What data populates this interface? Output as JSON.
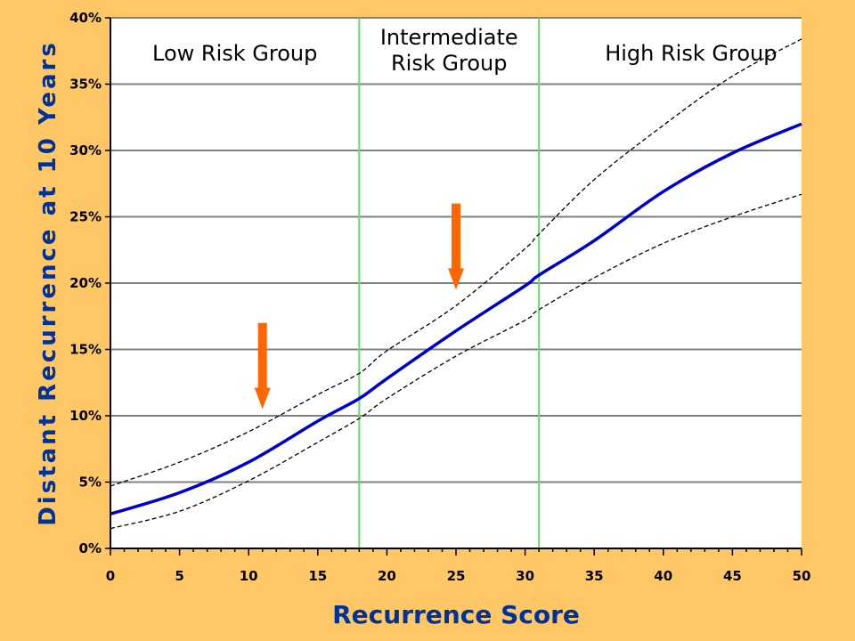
{
  "colors": {
    "background": "#FFC766",
    "plot_area": "#FFFFFF",
    "gridline": "#808080",
    "main_curve": "#0000CC",
    "ci_curve": "#000000",
    "boundary_line": "#66DD66",
    "arrow": "#FF6600",
    "axis_title": "#003399"
  },
  "chart_data": {
    "type": "line",
    "xlabel": "Recurrence Score",
    "ylabel": "Distant Recurrence at 10 Years",
    "xlim": [
      0,
      50
    ],
    "ylim": [
      0,
      40
    ],
    "x_ticks": [
      0,
      5,
      10,
      15,
      20,
      25,
      30,
      35,
      40,
      45,
      50
    ],
    "x_tick_labels": [
      "0",
      "5",
      "10",
      "15",
      "20",
      "25",
      "30",
      "35",
      "40",
      "45",
      "50"
    ],
    "y_ticks": [
      0,
      5,
      10,
      15,
      20,
      25,
      30,
      35,
      40
    ],
    "y_tick_labels": [
      "0%",
      "5%",
      "10%",
      "15%",
      "20%",
      "25%",
      "30%",
      "35%",
      "40%"
    ],
    "grid": "horizontal",
    "x": [
      0,
      5,
      10,
      15,
      18,
      20,
      25,
      30,
      31,
      35,
      40,
      45,
      50
    ],
    "series": [
      {
        "values": [
          2.6,
          4.2,
          6.5,
          9.6,
          11.3,
          12.8,
          16.4,
          19.8,
          20.6,
          23.2,
          26.9,
          29.8,
          32.0
        ]
      },
      {
        "values": [
          4.7,
          6.5,
          8.8,
          11.6,
          13.2,
          14.9,
          18.3,
          22.6,
          23.7,
          27.8,
          31.9,
          35.6,
          38.4
        ],
        "style": "dashed"
      },
      {
        "values": [
          1.5,
          2.8,
          5.1,
          8.0,
          9.8,
          11.3,
          14.5,
          17.2,
          18.0,
          20.4,
          23.0,
          25.0,
          26.7
        ],
        "style": "dashed"
      }
    ],
    "vertical_lines": [
      18,
      31
    ],
    "regions": [
      {
        "lines": [
          "Low Risk Group"
        ],
        "x_center": 9
      },
      {
        "lines": [
          "Intermediate",
          "Risk Group"
        ],
        "x_center": 24.5
      },
      {
        "lines": [
          "High Risk Group"
        ],
        "x_center": 42
      }
    ],
    "arrows": [
      {
        "x": 11,
        "y_from": 17,
        "y_to": 10.5
      },
      {
        "x": 25,
        "y_from": 26,
        "y_to": 19.5
      }
    ]
  }
}
